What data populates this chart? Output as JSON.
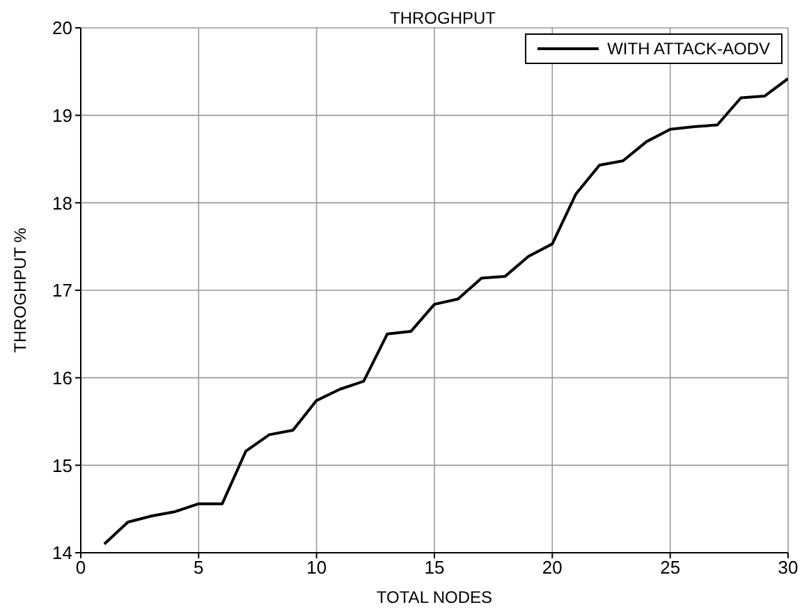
{
  "chart_data": {
    "type": "line",
    "title": "THROGHPUT",
    "xlabel": "TOTAL NODES",
    "ylabel": "THROGHPUT %",
    "x": [
      1,
      2,
      3,
      4,
      5,
      6,
      7,
      8,
      9,
      10,
      11,
      12,
      13,
      14,
      15,
      16,
      17,
      18,
      19,
      20,
      21,
      22,
      23,
      24,
      25,
      26,
      27,
      28,
      29,
      30
    ],
    "series": [
      {
        "name": "WITH ATTACK-AODV",
        "color": "#000000",
        "values": [
          14.1,
          14.35,
          14.42,
          14.47,
          14.56,
          14.56,
          15.16,
          15.35,
          15.4,
          15.74,
          15.87,
          15.96,
          16.5,
          16.53,
          16.84,
          16.9,
          17.14,
          17.16,
          17.39,
          17.53,
          18.1,
          18.43,
          18.48,
          18.7,
          18.84,
          18.87,
          18.89,
          19.2,
          19.22,
          19.42
        ]
      }
    ],
    "xlim": [
      0,
      30
    ],
    "xticks": [
      0,
      5,
      10,
      15,
      20,
      25,
      30
    ],
    "ylim": [
      14,
      20
    ],
    "yticks": [
      14,
      15,
      16,
      17,
      18,
      19,
      20
    ],
    "grid": true,
    "legend": "top right",
    "marker": "none",
    "line_style": "solid"
  }
}
